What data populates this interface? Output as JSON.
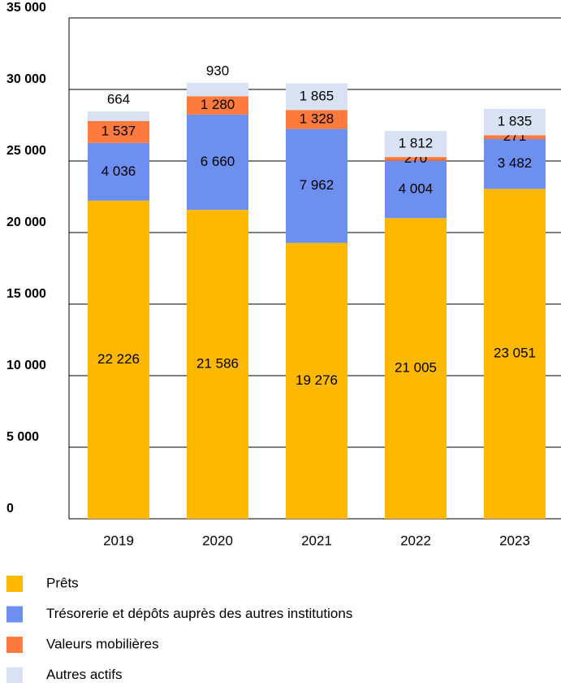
{
  "chart_data": {
    "type": "stacked-bar",
    "categories": [
      "2019",
      "2020",
      "2021",
      "2022",
      "2023"
    ],
    "series": [
      {
        "name": "Prêts",
        "color": "#ffb800",
        "values": [
          22226,
          21586,
          19276,
          21005,
          23051
        ],
        "value_labels": [
          "22 226",
          "21 586",
          "19 276",
          "21 005",
          "23 051"
        ]
      },
      {
        "name": "Trésorerie et dépôts auprès des autres institutions",
        "color": "#6d8ff0",
        "values": [
          4036,
          6660,
          7962,
          4004,
          3482
        ],
        "value_labels": [
          "4 036",
          "6 660",
          "7 962",
          "4 004",
          "3 482"
        ]
      },
      {
        "name": "Valeurs mobilières",
        "color": "#ff7a3d",
        "values": [
          1537,
          1280,
          1328,
          270,
          271
        ],
        "value_labels": [
          "1 537",
          "1 280",
          "1 328",
          "270",
          "271"
        ]
      },
      {
        "name": "Autres actifs",
        "color": "#d9e2f3",
        "values": [
          664,
          930,
          1865,
          1812,
          1835
        ],
        "value_labels": [
          "664",
          "930",
          "1 865",
          "1 812",
          "1 835"
        ]
      }
    ],
    "ylim": [
      0,
      35000
    ],
    "yticks": [
      0,
      {
        "value": 5000,
        "label": "5 000"
      },
      {
        "value": 10000,
        "label": "10 000"
      },
      {
        "value": 15000,
        "label": "15 000"
      },
      {
        "value": 20000,
        "label": "20 000"
      },
      {
        "value": 25000,
        "label": "25 000"
      },
      {
        "value": 30000,
        "label": "30 000"
      },
      {
        "value": 35000,
        "label": "35 000"
      }
    ],
    "grid": true
  }
}
